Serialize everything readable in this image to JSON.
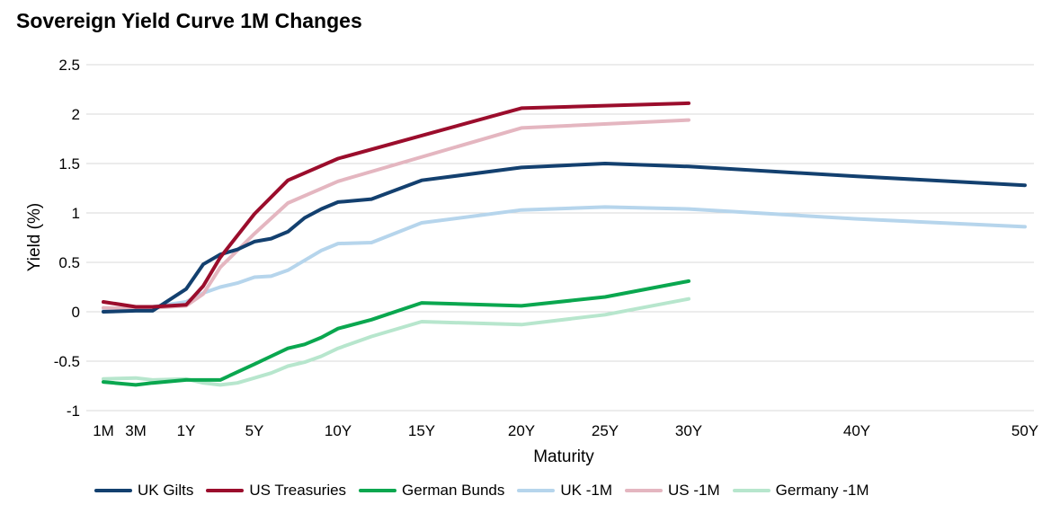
{
  "chart_data": {
    "type": "line",
    "title": "Sovereign Yield Curve 1M Changes",
    "xlabel": "Maturity",
    "ylabel": "Yield (%)",
    "ylim": [
      -1,
      2.5
    ],
    "yticks": [
      -1,
      -0.5,
      0,
      0.5,
      1,
      1.5,
      2,
      2.5
    ],
    "ytick_labels": [
      "-1",
      "-0.5",
      "0",
      "0.5",
      "1",
      "1.5",
      "2",
      "2.5"
    ],
    "xticks": [
      {
        "label": "1M",
        "years": 0.0833
      },
      {
        "label": "3M",
        "years": 0.25
      },
      {
        "label": "1Y",
        "years": 1
      },
      {
        "label": "5Y",
        "years": 5
      },
      {
        "label": "10Y",
        "years": 10
      },
      {
        "label": "15Y",
        "years": 15
      },
      {
        "label": "20Y",
        "years": 20
      },
      {
        "label": "25Y",
        "years": 25
      },
      {
        "label": "30Y",
        "years": 30
      },
      {
        "label": "40Y",
        "years": 40
      },
      {
        "label": "50Y",
        "years": 50
      }
    ],
    "grid": true,
    "legend_position": "bottom",
    "series": [
      {
        "name": "UK Gilts",
        "color": "#13406f",
        "width": 4,
        "points": [
          [
            0.083,
            0.0
          ],
          [
            0.25,
            0.01
          ],
          [
            0.5,
            0.01
          ],
          [
            1,
            0.23
          ],
          [
            2,
            0.48
          ],
          [
            3,
            0.58
          ],
          [
            4,
            0.63
          ],
          [
            5,
            0.71
          ],
          [
            6,
            0.74
          ],
          [
            7,
            0.81
          ],
          [
            8,
            0.95
          ],
          [
            9,
            1.04
          ],
          [
            10,
            1.11
          ],
          [
            12,
            1.14
          ],
          [
            15,
            1.33
          ],
          [
            20,
            1.46
          ],
          [
            25,
            1.5
          ],
          [
            30,
            1.47
          ],
          [
            40,
            1.37
          ],
          [
            50,
            1.28
          ]
        ]
      },
      {
        "name": "US Treasuries",
        "color": "#9b0d2c",
        "width": 4,
        "points": [
          [
            0.083,
            0.1
          ],
          [
            0.25,
            0.05
          ],
          [
            0.5,
            0.05
          ],
          [
            1,
            0.07
          ],
          [
            2,
            0.26
          ],
          [
            3,
            0.55
          ],
          [
            5,
            0.99
          ],
          [
            7,
            1.33
          ],
          [
            10,
            1.55
          ],
          [
            20,
            2.06
          ],
          [
            30,
            2.11
          ]
        ]
      },
      {
        "name": "German Bunds",
        "color": "#0aa74f",
        "width": 4,
        "points": [
          [
            0.083,
            -0.71
          ],
          [
            0.25,
            -0.74
          ],
          [
            0.5,
            -0.72
          ],
          [
            1,
            -0.69
          ],
          [
            2,
            -0.69
          ],
          [
            3,
            -0.69
          ],
          [
            4,
            -0.61
          ],
          [
            5,
            -0.53
          ],
          [
            6,
            -0.45
          ],
          [
            7,
            -0.37
          ],
          [
            8,
            -0.33
          ],
          [
            9,
            -0.26
          ],
          [
            10,
            -0.17
          ],
          [
            12,
            -0.08
          ],
          [
            15,
            0.09
          ],
          [
            20,
            0.06
          ],
          [
            25,
            0.15
          ],
          [
            30,
            0.31
          ]
        ]
      },
      {
        "name": "UK -1M",
        "color": "#b6d5ec",
        "width": 4,
        "points": [
          [
            0.083,
            0.01
          ],
          [
            0.25,
            0.02
          ],
          [
            0.5,
            0.05
          ],
          [
            1,
            0.1
          ],
          [
            2,
            0.19
          ],
          [
            3,
            0.25
          ],
          [
            4,
            0.29
          ],
          [
            5,
            0.35
          ],
          [
            6,
            0.36
          ],
          [
            7,
            0.42
          ],
          [
            8,
            0.52
          ],
          [
            9,
            0.62
          ],
          [
            10,
            0.69
          ],
          [
            12,
            0.7
          ],
          [
            15,
            0.9
          ],
          [
            20,
            1.03
          ],
          [
            25,
            1.06
          ],
          [
            30,
            1.04
          ],
          [
            40,
            0.94
          ],
          [
            50,
            0.86
          ]
        ]
      },
      {
        "name": "US -1M",
        "color": "#e4b6c0",
        "width": 4,
        "points": [
          [
            0.083,
            0.04
          ],
          [
            0.25,
            0.03
          ],
          [
            0.5,
            0.04
          ],
          [
            1,
            0.06
          ],
          [
            2,
            0.18
          ],
          [
            3,
            0.45
          ],
          [
            5,
            0.79
          ],
          [
            7,
            1.1
          ],
          [
            10,
            1.32
          ],
          [
            20,
            1.86
          ],
          [
            30,
            1.94
          ]
        ]
      },
      {
        "name": "Germany -1M",
        "color": "#b7e6cd",
        "width": 4,
        "points": [
          [
            0.083,
            -0.68
          ],
          [
            0.25,
            -0.67
          ],
          [
            0.5,
            -0.69
          ],
          [
            1,
            -0.68
          ],
          [
            2,
            -0.72
          ],
          [
            3,
            -0.74
          ],
          [
            4,
            -0.72
          ],
          [
            5,
            -0.67
          ],
          [
            6,
            -0.62
          ],
          [
            7,
            -0.55
          ],
          [
            8,
            -0.51
          ],
          [
            9,
            -0.45
          ],
          [
            10,
            -0.37
          ],
          [
            12,
            -0.25
          ],
          [
            15,
            -0.1
          ],
          [
            20,
            -0.13
          ],
          [
            25,
            -0.03
          ],
          [
            30,
            0.13
          ]
        ]
      }
    ]
  }
}
